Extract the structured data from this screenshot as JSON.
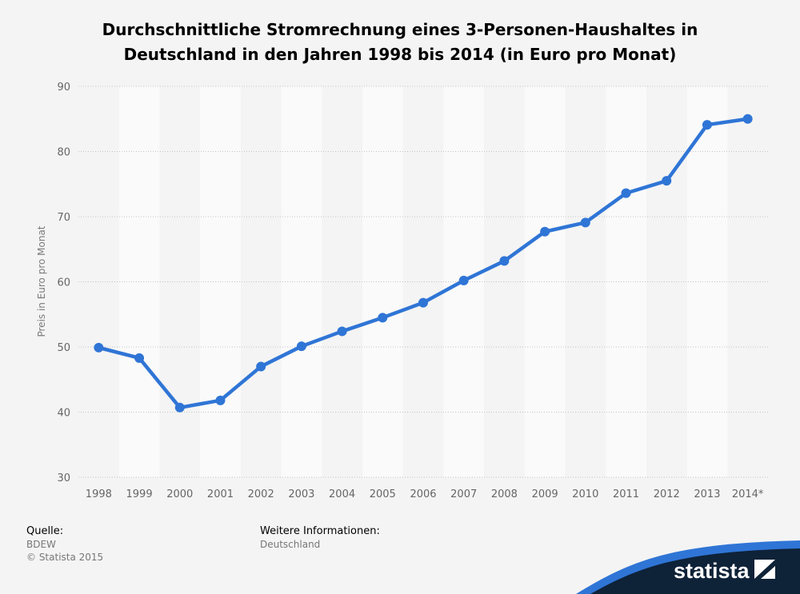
{
  "chart_data": {
    "type": "line",
    "title": "Durchschnittliche Stromrechnung eines 3-Personen-Haushaltes in Deutschland in den Jahren 1998 bis 2014 (in Euro pro Monat)",
    "ylabel": "Preis in Euro pro Monat",
    "xlabel": "",
    "categories": [
      "1998",
      "1999",
      "2000",
      "2001",
      "2002",
      "2003",
      "2004",
      "2005",
      "2006",
      "2007",
      "2008",
      "2009",
      "2010",
      "2011",
      "2012",
      "2013",
      "2014*"
    ],
    "series": [
      {
        "values": [
          49.9,
          48.3,
          40.7,
          41.8,
          47.0,
          50.1,
          52.4,
          54.5,
          56.8,
          60.2,
          63.2,
          67.7,
          69.1,
          73.6,
          75.5,
          84.1,
          85.0
        ]
      }
    ],
    "ylim": [
      30,
      90
    ],
    "yticks": [
      30,
      40,
      50,
      60,
      70,
      80,
      90
    ],
    "grid": true,
    "legend": "none",
    "line_color": "#2f75d6"
  },
  "footer": {
    "source_heading": "Quelle:",
    "source_text": "BDEW",
    "copyright": "© Statista 2015",
    "info_heading": "Weitere Informationen:",
    "info_text": "Deutschland"
  },
  "brand": {
    "name": "statista",
    "colors": {
      "dark": "#0e2238",
      "accent": "#2f75d6"
    }
  }
}
